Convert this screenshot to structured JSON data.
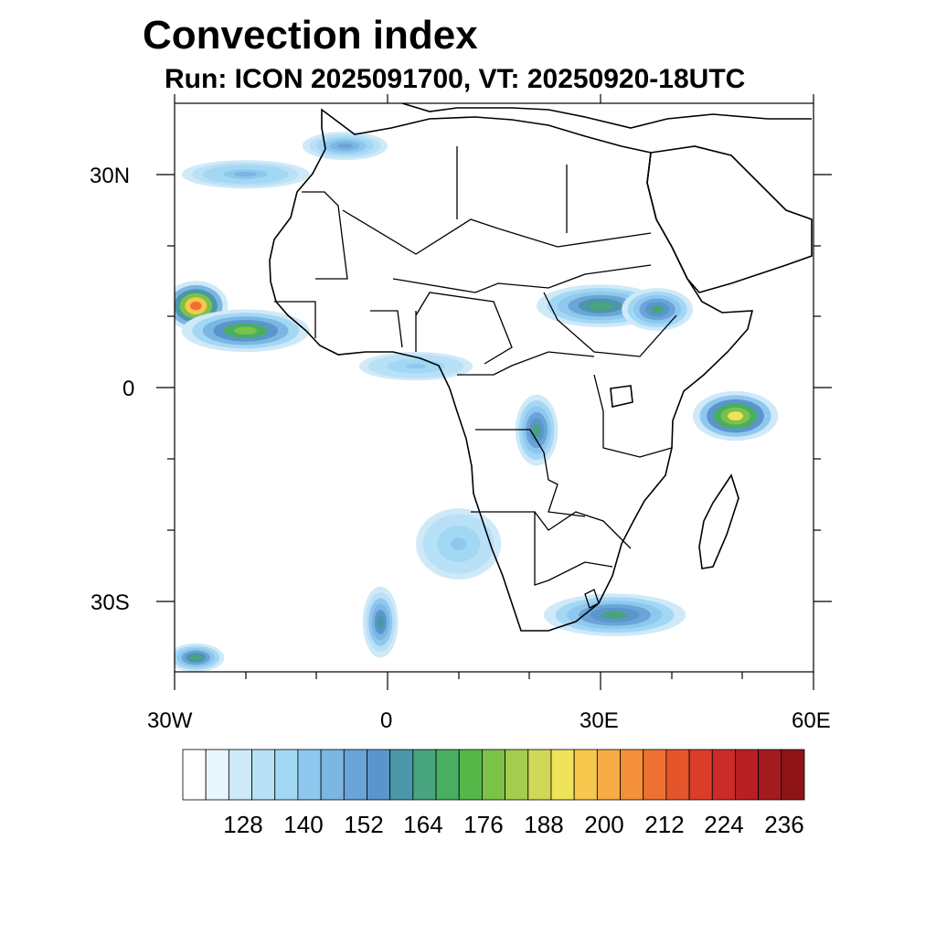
{
  "title": "Convection index",
  "subtitle": "Run: ICON 2025091700,  VT: 20250920-18UTC",
  "lat_labels": [
    "30N",
    "0",
    "30S"
  ],
  "lon_labels": [
    "30W",
    "0",
    "30E",
    "60E"
  ],
  "colorbar": {
    "labels": [
      "128",
      "140",
      "152",
      "164",
      "176",
      "188",
      "200",
      "212",
      "224",
      "236"
    ],
    "colors": [
      "#ffffff",
      "#e8f5fd",
      "#cfe9f8",
      "#b8e0f6",
      "#a3d8f5",
      "#8fc8ee",
      "#7cb6e3",
      "#6aa4d8",
      "#5a96cb",
      "#4a97a7",
      "#48a37f",
      "#4aae62",
      "#55b748",
      "#7cc249",
      "#a6cc4f",
      "#cfd957",
      "#f0e35c",
      "#f8c84e",
      "#f7ab44",
      "#f48f3a",
      "#ef7131",
      "#e5552c",
      "#dc3c2a",
      "#cd2a2a",
      "#b81f25",
      "#a31a20",
      "#8e1418"
    ]
  },
  "map": {
    "lon_range": [
      -30,
      60
    ],
    "lat_range": [
      -40,
      40
    ],
    "fields": [
      {
        "name": "west-atlantic-cell",
        "lon": -27,
        "lat": 11.5,
        "rx": 4.5,
        "ry": 3.5,
        "peak": 232
      },
      {
        "name": "west-africa-coast-band",
        "lon": -20,
        "lat": 8,
        "rx": 9,
        "ry": 3,
        "peak": 186
      },
      {
        "name": "sudan-band",
        "lon": 30,
        "lat": 11.5,
        "rx": 9,
        "ry": 3,
        "peak": 172
      },
      {
        "name": "ethiopia-band",
        "lon": 38,
        "lat": 11,
        "rx": 5,
        "ry": 3,
        "peak": 168
      },
      {
        "name": "indian-ocean-cell",
        "lon": 49,
        "lat": -4,
        "rx": 6,
        "ry": 3.5,
        "peak": 208
      },
      {
        "name": "congo-cell",
        "lon": 21,
        "lat": -6,
        "rx": 3,
        "ry": 5,
        "peak": 170
      },
      {
        "name": "south-africa-band",
        "lon": 32,
        "lat": -32,
        "rx": 10,
        "ry": 3,
        "peak": 170
      },
      {
        "name": "south-atlantic-band",
        "lon": -1,
        "lat": -33,
        "rx": 2.5,
        "ry": 5,
        "peak": 166
      },
      {
        "name": "southwest-corner-band",
        "lon": -27,
        "lat": -38,
        "rx": 4,
        "ry": 2,
        "peak": 172
      },
      {
        "name": "mediterranean-band",
        "lon": -6,
        "lat": 34,
        "rx": 6,
        "ry": 2,
        "peak": 150
      },
      {
        "name": "north-atlantic-band",
        "lon": -20,
        "lat": 30,
        "rx": 9,
        "ry": 2,
        "peak": 146
      },
      {
        "name": "gulf-of-guinea-band",
        "lon": 4,
        "lat": 3,
        "rx": 8,
        "ry": 2,
        "peak": 140
      },
      {
        "name": "namibia-band",
        "lon": 10,
        "lat": -22,
        "rx": 6,
        "ry": 5,
        "peak": 138
      }
    ]
  }
}
